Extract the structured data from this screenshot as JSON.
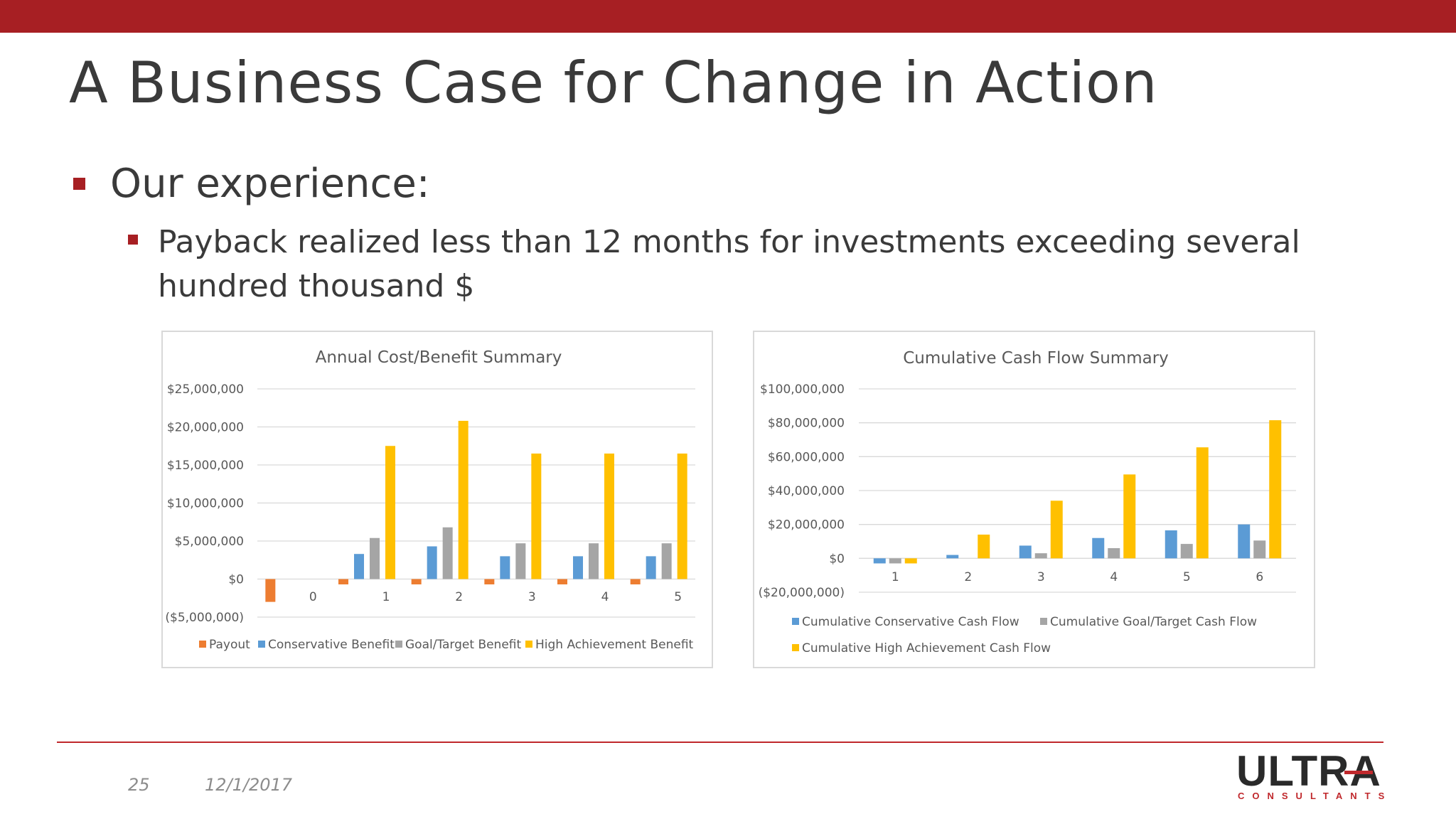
{
  "slide": {
    "title": "A Business Case for Change in Action",
    "bullet1": "Our experience:",
    "bullet2": "Payback realized less than 12 months for investments exceeding several hundred thousand $",
    "page_number": "25",
    "date": "12/1/2017",
    "logo_text": "ULTRA",
    "logo_subtext": "CONSULTANTS",
    "colors": {
      "brand_red": "#a71f23",
      "payout": "#ed7d31",
      "conservative": "#5b9bd5",
      "goal": "#a5a5a5",
      "high": "#ffc000"
    }
  },
  "chart_data": [
    {
      "type": "bar",
      "title": "Annual Cost/Benefit Summary",
      "categories": [
        "0",
        "1",
        "2",
        "3",
        "4",
        "5"
      ],
      "series": [
        {
          "name": "Payout",
          "values": [
            -3000000,
            -700000,
            -700000,
            -700000,
            -700000,
            -700000
          ]
        },
        {
          "name": "Conservative Benefit",
          "values": [
            0,
            3300000,
            4300000,
            3000000,
            3000000,
            3000000
          ]
        },
        {
          "name": "Goal/Target Benefit",
          "values": [
            0,
            5400000,
            6800000,
            4700000,
            4700000,
            4700000
          ]
        },
        {
          "name": "High Achievement Benefit",
          "values": [
            0,
            17500000,
            20800000,
            16500000,
            16500000,
            16500000
          ]
        }
      ],
      "ylim": [
        -5000000,
        25000000
      ],
      "yticks": [
        25000000,
        20000000,
        15000000,
        10000000,
        5000000,
        0,
        -5000000
      ],
      "ytick_labels": [
        "$25,000,000",
        "$20,000,000",
        "$15,000,000",
        "$10,000,000",
        "$5,000,000",
        "$0",
        "($5,000,000)"
      ],
      "legend_position": "bottom",
      "grid": true
    },
    {
      "type": "bar",
      "title": "Cumulative Cash Flow Summary",
      "categories": [
        "1",
        "2",
        "3",
        "4",
        "5",
        "6"
      ],
      "series": [
        {
          "name": "Cumulative Conservative Cash Flow",
          "values": [
            -3000000,
            2000000,
            7500000,
            12000000,
            16500000,
            20000000
          ]
        },
        {
          "name": "Cumulative Goal/Target Cash Flow",
          "values": [
            -3000000,
            0,
            3000000,
            6000000,
            8500000,
            10500000
          ]
        },
        {
          "name": "Cumulative High Achievement Cash Flow",
          "values": [
            -3000000,
            14000000,
            34000000,
            49500000,
            65500000,
            81500000
          ]
        }
      ],
      "ylim": [
        -20000000,
        100000000
      ],
      "yticks": [
        100000000,
        80000000,
        60000000,
        40000000,
        20000000,
        0,
        -20000000
      ],
      "ytick_labels": [
        "$100,000,000",
        "$80,000,000",
        "$60,000,000",
        "$40,000,000",
        "$20,000,000",
        "$0",
        "($20,000,000)"
      ],
      "legend_position": "bottom",
      "grid": true
    }
  ]
}
